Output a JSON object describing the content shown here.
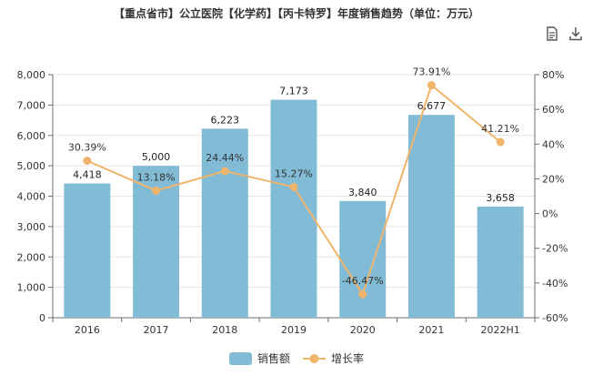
{
  "title": "【重点省市】公立医院【化学药】【丙卡特罗】年度销售趋势（单位：万元）",
  "toolbar": {
    "data_view_icon": "document-icon",
    "download_icon": "download-icon"
  },
  "colors": {
    "bar": "#82bbd6",
    "line": "#f0b46b",
    "axis": "#6e6e6e",
    "grid": "#e6e6e6"
  },
  "chart_data": {
    "type": "bar",
    "categories": [
      "2016",
      "2017",
      "2018",
      "2019",
      "2020",
      "2021",
      "2022H1"
    ],
    "series": [
      {
        "name": "销售额",
        "type": "bar",
        "axis": "left",
        "values": [
          4418,
          5000,
          6223,
          7173,
          3840,
          6677,
          3658
        ],
        "labels": [
          "4,418",
          "5,000",
          "6,223",
          "7,173",
          "3,840",
          "6,677",
          "3,658"
        ]
      },
      {
        "name": "增长率",
        "type": "line",
        "axis": "right",
        "unit": "%",
        "values": [
          30.39,
          13.18,
          24.44,
          15.27,
          -46.47,
          73.91,
          41.21
        ],
        "labels": [
          "30.39%",
          "13.18%",
          "24.44%",
          "15.27%",
          "-46.47%",
          "73.91%",
          "41.21%"
        ]
      }
    ],
    "y_left": {
      "min": 0,
      "max": 8000,
      "ticks": [
        0,
        1000,
        2000,
        3000,
        4000,
        5000,
        6000,
        7000,
        8000
      ],
      "tick_labels": [
        "0",
        "1,000",
        "2,000",
        "3,000",
        "4,000",
        "5,000",
        "6,000",
        "7,000",
        "8,000"
      ]
    },
    "y_right": {
      "min": -60,
      "max": 80,
      "ticks": [
        -60,
        -40,
        -20,
        0,
        20,
        40,
        60,
        80
      ],
      "tick_labels": [
        "-60%",
        "-40%",
        "-20%",
        "0%",
        "20%",
        "40%",
        "60%",
        "80%"
      ]
    },
    "grid": true,
    "legend": "bottom-center"
  }
}
